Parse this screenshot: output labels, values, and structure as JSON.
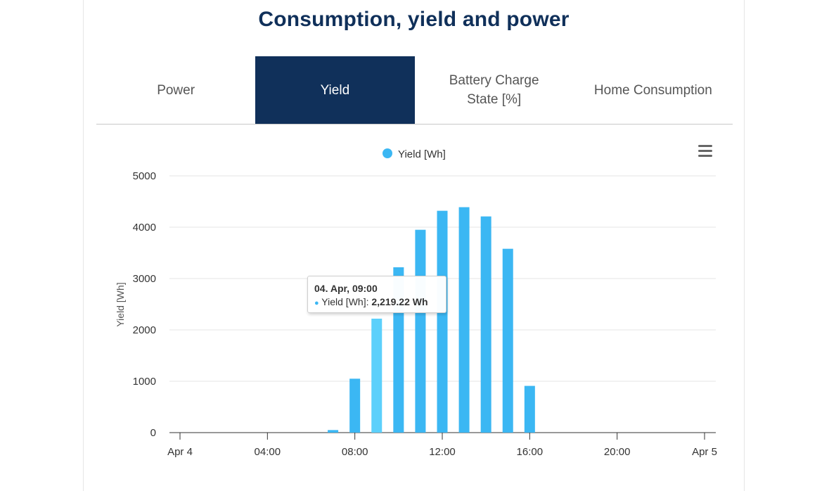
{
  "page": {
    "title": "Consumption, yield and power"
  },
  "tabs": [
    {
      "label": "Power",
      "active": false
    },
    {
      "label": "Yield",
      "active": true
    },
    {
      "label": "Battery Charge State [%]",
      "active": false
    },
    {
      "label": "Home Consumption",
      "active": false
    }
  ],
  "colors": {
    "title": "#10305a",
    "tab_active_bg": "#10305a",
    "series": "#3bb7f3",
    "series_hover": "#5cd0fb",
    "grid": "#e6e6e6"
  },
  "icons": {
    "chart_menu": "hamburger-menu-icon"
  },
  "tooltip": {
    "header": "04. Apr, 09:00",
    "series_label": "Yield [Wh]:",
    "value": "2,219.22 Wh"
  },
  "chart_data": {
    "type": "bar",
    "legend": {
      "label": "Yield [Wh]",
      "placement": "top-center"
    },
    "ylabel": "Yield [Wh]",
    "xlabel": "",
    "ylim": [
      0,
      5000
    ],
    "yticks": [
      0,
      1000,
      2000,
      3000,
      4000,
      5000
    ],
    "xlim": [
      "Apr 4 00:00",
      "Apr 5 00:00"
    ],
    "xticks": [
      {
        "hour": 0,
        "label": "Apr 4"
      },
      {
        "hour": 4,
        "label": "04:00"
      },
      {
        "hour": 8,
        "label": "08:00"
      },
      {
        "hour": 12,
        "label": "12:00"
      },
      {
        "hour": 16,
        "label": "16:00"
      },
      {
        "hour": 20,
        "label": "20:00"
      },
      {
        "hour": 24,
        "label": "Apr 5"
      }
    ],
    "grid": true,
    "series": [
      {
        "name": "Yield [Wh]",
        "points": [
          {
            "hour": 7,
            "value": 50
          },
          {
            "hour": 8,
            "value": 1050
          },
          {
            "hour": 9,
            "value": 2219.22
          },
          {
            "hour": 10,
            "value": 3220
          },
          {
            "hour": 11,
            "value": 3950
          },
          {
            "hour": 12,
            "value": 4320
          },
          {
            "hour": 13,
            "value": 4390
          },
          {
            "hour": 14,
            "value": 4210
          },
          {
            "hour": 15,
            "value": 3580
          },
          {
            "hour": 16,
            "value": 910
          }
        ]
      }
    ],
    "highlighted_hour": 9
  }
}
